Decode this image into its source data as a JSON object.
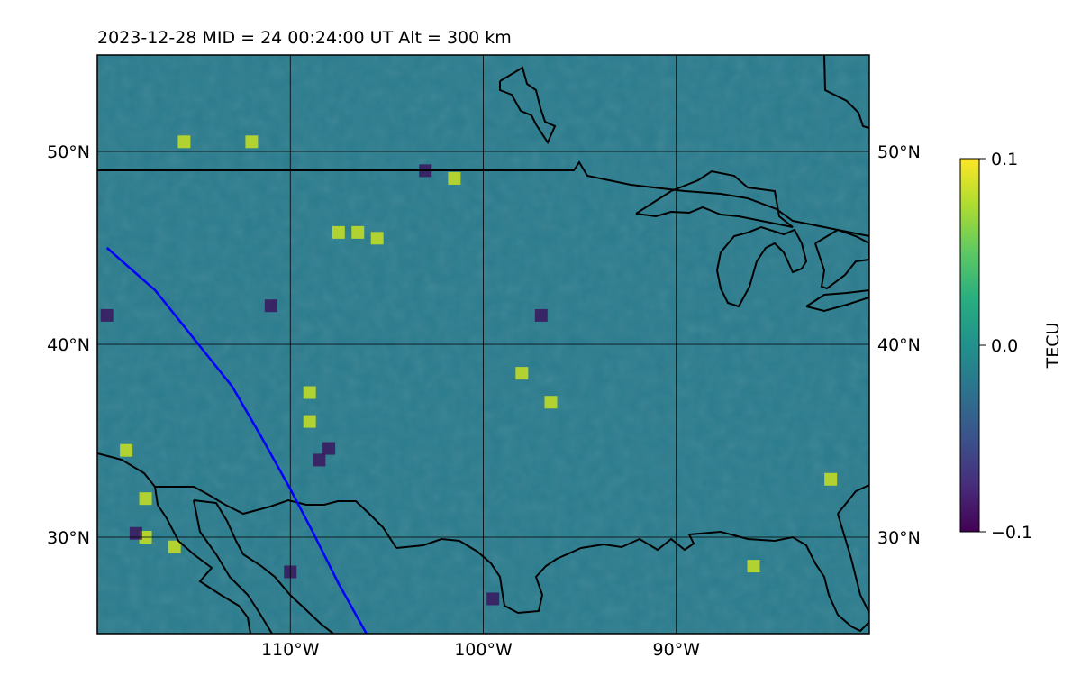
{
  "chart_data": {
    "type": "heatmap",
    "title": "2023-12-28  MID =  24    00:24:00  UT  Alt = 300 km",
    "projection": "map of North America (TEC perturbation field)",
    "lon_range": [
      -120,
      -80
    ],
    "lat_range": [
      25,
      55
    ],
    "x_ticks": [
      {
        "value": -110,
        "label": "110°W"
      },
      {
        "value": -100,
        "label": "100°W"
      },
      {
        "value": -90,
        "label": "90°W"
      }
    ],
    "y_ticks": [
      {
        "value": 30,
        "label": "30°N"
      },
      {
        "value": 40,
        "label": "40°N"
      },
      {
        "value": 50,
        "label": "50°N"
      }
    ],
    "grid": true,
    "colormap": "viridis",
    "colorbar": {
      "label": "TECU",
      "vmin": -0.1,
      "vmax": 0.1,
      "ticks": [
        {
          "value": 0.1,
          "label": "0.1"
        },
        {
          "value": 0.0,
          "label": "0.0"
        },
        {
          "value": -0.1,
          "label": "−0.1"
        }
      ]
    },
    "satellite_track": {
      "color": "#0000ff",
      "points": [
        [
          -119.5,
          45.0
        ],
        [
          -117.0,
          42.8
        ],
        [
          -115.0,
          40.3
        ],
        [
          -113.0,
          37.8
        ],
        [
          -111.5,
          35.2
        ],
        [
          -110.0,
          32.5
        ],
        [
          -108.8,
          30.2
        ],
        [
          -107.5,
          27.6
        ],
        [
          -106.0,
          24.9
        ]
      ]
    },
    "notable_anomalies": [
      {
        "lon": -101.5,
        "lat": 48.6,
        "sign": "positive"
      },
      {
        "lon": -107.5,
        "lat": 45.8,
        "sign": "positive"
      },
      {
        "lon": -106.5,
        "lat": 45.8,
        "sign": "positive"
      },
      {
        "lon": -105.5,
        "lat": 45.5,
        "sign": "positive"
      },
      {
        "lon": -112.0,
        "lat": 50.5,
        "sign": "positive"
      },
      {
        "lon": -115.5,
        "lat": 50.5,
        "sign": "positive"
      },
      {
        "lon": -116.0,
        "lat": 29.5,
        "sign": "positive"
      },
      {
        "lon": -117.5,
        "lat": 30.0,
        "sign": "positive"
      },
      {
        "lon": -108.5,
        "lat": 34.0,
        "sign": "negative"
      },
      {
        "lon": -108.0,
        "lat": 34.6,
        "sign": "negative"
      },
      {
        "lon": -118.0,
        "lat": 30.2,
        "sign": "negative"
      },
      {
        "lon": -110.0,
        "lat": 28.2,
        "sign": "negative"
      },
      {
        "lon": -111.0,
        "lat": 42.0,
        "sign": "negative"
      },
      {
        "lon": -119.5,
        "lat": 41.5,
        "sign": "negative"
      },
      {
        "lon": -103.0,
        "lat": 49.0,
        "sign": "negative"
      },
      {
        "lon": -99.5,
        "lat": 26.8,
        "sign": "negative"
      },
      {
        "lon": -97.0,
        "lat": 41.5,
        "sign": "negative"
      },
      {
        "lon": -98.0,
        "lat": 38.5,
        "sign": "positive"
      },
      {
        "lon": -96.5,
        "lat": 37.0,
        "sign": "positive"
      },
      {
        "lon": -109.0,
        "lat": 37.5,
        "sign": "positive"
      },
      {
        "lon": -109.0,
        "lat": 36.0,
        "sign": "positive"
      },
      {
        "lon": -118.5,
        "lat": 34.5,
        "sign": "positive"
      },
      {
        "lon": -117.5,
        "lat": 32.0,
        "sign": "positive"
      },
      {
        "lon": -86.0,
        "lat": 28.5,
        "sign": "positive"
      },
      {
        "lon": -82.0,
        "lat": 33.0,
        "sign": "positive"
      }
    ]
  }
}
